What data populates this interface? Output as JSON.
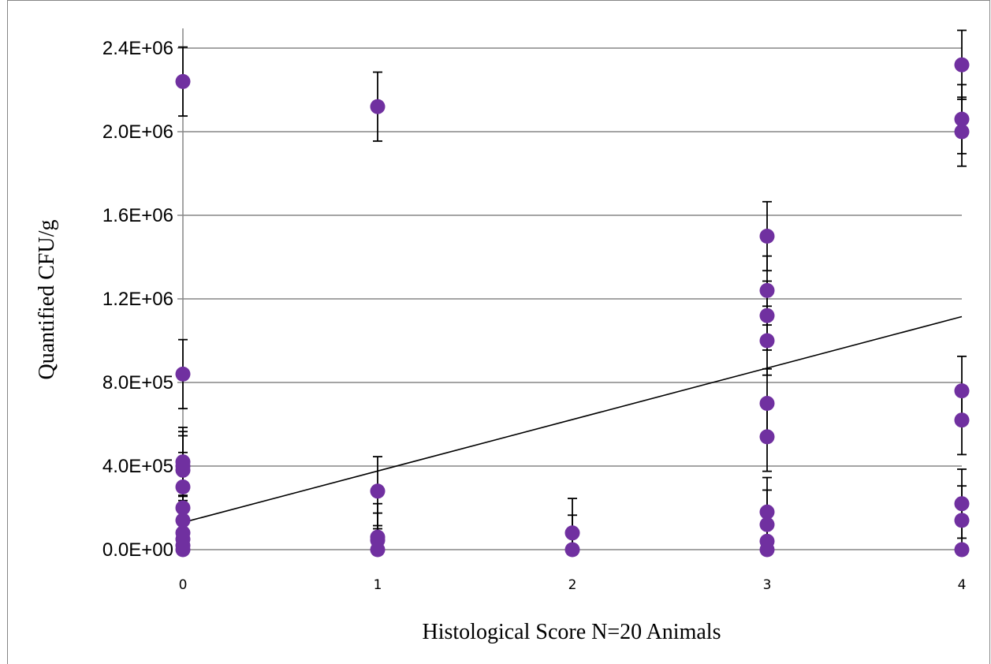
{
  "chart_data": {
    "type": "scatter",
    "title": "",
    "xlabel": "Histological Score N=20 Animals",
    "ylabel": "Quantified CFU/g",
    "xlim": [
      0,
      4
    ],
    "ylim": [
      0,
      2600000
    ],
    "y_ticks": [
      0,
      400000,
      800000,
      1200000,
      1600000,
      2000000,
      2400000
    ],
    "y_tick_labels": [
      "0.0E+00",
      "4.0E+05",
      "8.0E+05",
      "1.2E+06",
      "1.6E+06",
      "2.0E+06",
      "2.4E+06"
    ],
    "x_ticks": [
      0,
      1,
      2,
      3,
      4
    ],
    "x_tick_labels": [
      "0",
      "1",
      "2",
      "3",
      "4"
    ],
    "grid": "horizontal",
    "legend": "none",
    "marker_color": "#7030a0",
    "error_bar_color": "#000000",
    "trendline": {
      "type": "linear",
      "x": [
        0,
        4
      ],
      "y": [
        130000,
        1115000
      ]
    },
    "points": [
      {
        "x": 0,
        "y": 2240000,
        "err": 165000
      },
      {
        "x": 0,
        "y": 840000,
        "err": 165000
      },
      {
        "x": 0,
        "y": 420000,
        "err": 165000
      },
      {
        "x": 0,
        "y": 400000,
        "err": 165000
      },
      {
        "x": 0,
        "y": 380000,
        "err": 165000
      },
      {
        "x": 0,
        "y": 300000,
        "err": 165000
      },
      {
        "x": 0,
        "y": 200000,
        "err": 60000
      },
      {
        "x": 0,
        "y": 140000,
        "err": 60000
      },
      {
        "x": 0,
        "y": 80000,
        "err": 0
      },
      {
        "x": 0,
        "y": 50000,
        "err": 0
      },
      {
        "x": 0,
        "y": 20000,
        "err": 0
      },
      {
        "x": 0,
        "y": 0,
        "err": 0
      },
      {
        "x": 1,
        "y": 2120000,
        "err": 165000
      },
      {
        "x": 1,
        "y": 280000,
        "err": 165000
      },
      {
        "x": 1,
        "y": 60000,
        "err": 160000
      },
      {
        "x": 1,
        "y": 45000,
        "err": 130000
      },
      {
        "x": 1,
        "y": 0,
        "err": 100000
      },
      {
        "x": 2,
        "y": 80000,
        "err": 165000
      },
      {
        "x": 2,
        "y": 0,
        "err": 165000
      },
      {
        "x": 3,
        "y": 1500000,
        "err": 165000
      },
      {
        "x": 3,
        "y": 1240000,
        "err": 165000
      },
      {
        "x": 3,
        "y": 1120000,
        "err": 165000
      },
      {
        "x": 3,
        "y": 1000000,
        "err": 165000
      },
      {
        "x": 3,
        "y": 700000,
        "err": 165000
      },
      {
        "x": 3,
        "y": 540000,
        "err": 165000
      },
      {
        "x": 3,
        "y": 180000,
        "err": 165000
      },
      {
        "x": 3,
        "y": 120000,
        "err": 165000
      },
      {
        "x": 3,
        "y": 40000,
        "err": 0
      },
      {
        "x": 3,
        "y": 0,
        "err": 0
      },
      {
        "x": 4,
        "y": 2320000,
        "err": 165000
      },
      {
        "x": 4,
        "y": 2060000,
        "err": 165000
      },
      {
        "x": 4,
        "y": 2000000,
        "err": 165000
      },
      {
        "x": 4,
        "y": 760000,
        "err": 165000
      },
      {
        "x": 4,
        "y": 620000,
        "err": 165000
      },
      {
        "x": 4,
        "y": 220000,
        "err": 165000
      },
      {
        "x": 4,
        "y": 140000,
        "err": 165000
      },
      {
        "x": 4,
        "y": 0,
        "err": 0
      }
    ]
  }
}
